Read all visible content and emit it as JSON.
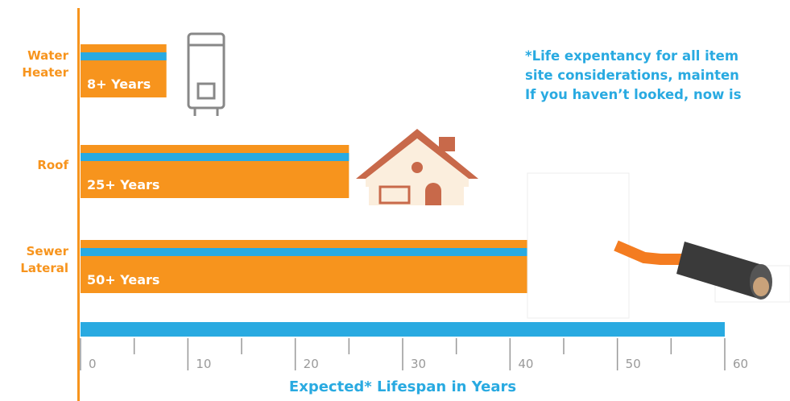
{
  "chart_data": {
    "type": "bar",
    "orientation": "horizontal",
    "categories": [
      "Water Heater",
      "Roof",
      "Sewer Lateral"
    ],
    "values": [
      8,
      25,
      50
    ],
    "value_labels": [
      "8+ Years",
      "25+ Years",
      "50+ Years"
    ],
    "color": "#f7941d",
    "stripe_color": "#29aae1",
    "xlim": [
      0,
      60
    ],
    "xticks": [
      0,
      10,
      20,
      30,
      40,
      50,
      60
    ],
    "minor_xticks": [
      5,
      15,
      25,
      35,
      45,
      55
    ],
    "x_label": "Expected* Lifespan in Years",
    "note": [
      "*Life expentancy for all item",
      "site considerations, mainten",
      "If you haven’t looked, now is"
    ]
  }
}
